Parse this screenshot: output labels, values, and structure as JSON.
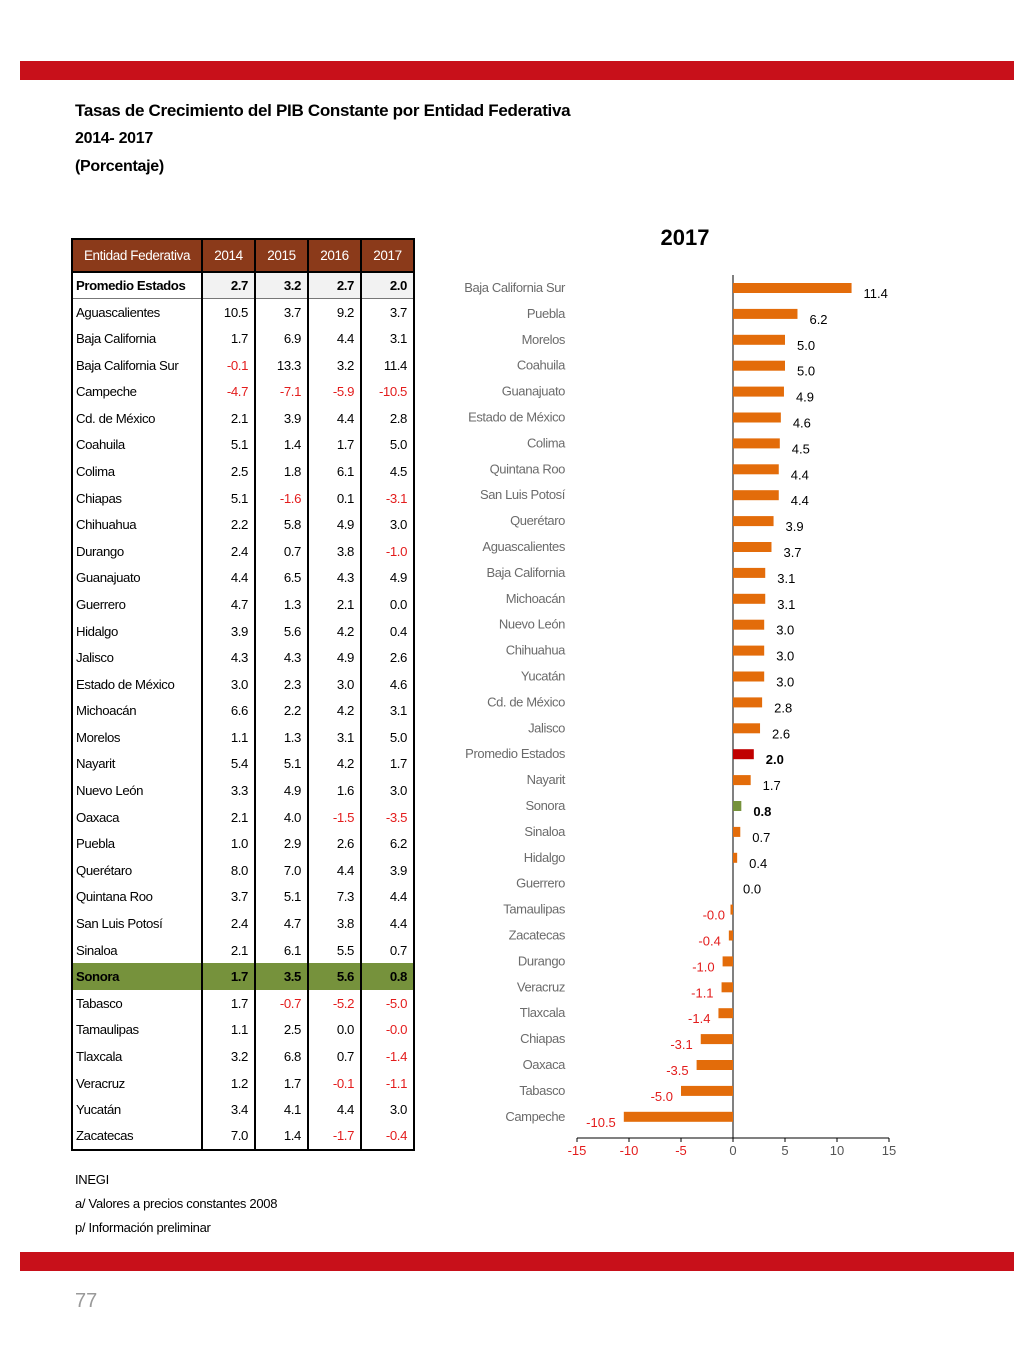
{
  "title": {
    "line1": "Tasas de Crecimiento del PIB Constante por Entidad Federativa",
    "line2": "2014- 2017",
    "line3": "(Porcentaje)"
  },
  "table": {
    "headers": [
      "Entidad Federativa",
      "2014",
      "2015",
      "2016",
      "2017"
    ],
    "rows": [
      {
        "name": "Promedio Estados",
        "values": [
          "2.7",
          "3.2",
          "2.7",
          "2.0"
        ],
        "style": "avg"
      },
      {
        "name": "Aguascalientes",
        "values": [
          "10.5",
          "3.7",
          "9.2",
          "3.7"
        ]
      },
      {
        "name": "Baja California",
        "values": [
          "1.7",
          "6.9",
          "4.4",
          "3.1"
        ]
      },
      {
        "name": "Baja California Sur",
        "values": [
          "-0.1",
          "13.3",
          "3.2",
          "11.4"
        ]
      },
      {
        "name": "Campeche",
        "values": [
          "-4.7",
          "-7.1",
          "-5.9",
          "-10.5"
        ]
      },
      {
        "name": "Cd. de México",
        "values": [
          "2.1",
          "3.9",
          "4.4",
          "2.8"
        ]
      },
      {
        "name": "Coahuila",
        "values": [
          "5.1",
          "1.4",
          "1.7",
          "5.0"
        ]
      },
      {
        "name": "Colima",
        "values": [
          "2.5",
          "1.8",
          "6.1",
          "4.5"
        ]
      },
      {
        "name": "Chiapas",
        "values": [
          "5.1",
          "-1.6",
          "0.1",
          "-3.1"
        ]
      },
      {
        "name": "Chihuahua",
        "values": [
          "2.2",
          "5.8",
          "4.9",
          "3.0"
        ]
      },
      {
        "name": "Durango",
        "values": [
          "2.4",
          "0.7",
          "3.8",
          "-1.0"
        ]
      },
      {
        "name": "Guanajuato",
        "values": [
          "4.4",
          "6.5",
          "4.3",
          "4.9"
        ]
      },
      {
        "name": "Guerrero",
        "values": [
          "4.7",
          "1.3",
          "2.1",
          "0.0"
        ]
      },
      {
        "name": "Hidalgo",
        "values": [
          "3.9",
          "5.6",
          "4.2",
          "0.4"
        ]
      },
      {
        "name": "Jalisco",
        "values": [
          "4.3",
          "4.3",
          "4.9",
          "2.6"
        ]
      },
      {
        "name": "Estado de México",
        "values": [
          "3.0",
          "2.3",
          "3.0",
          "4.6"
        ]
      },
      {
        "name": "Michoacán",
        "values": [
          "6.6",
          "2.2",
          "4.2",
          "3.1"
        ]
      },
      {
        "name": "Morelos",
        "values": [
          "1.1",
          "1.3",
          "3.1",
          "5.0"
        ]
      },
      {
        "name": "Nayarit",
        "values": [
          "5.4",
          "5.1",
          "4.2",
          "1.7"
        ]
      },
      {
        "name": "Nuevo León",
        "values": [
          "3.3",
          "4.9",
          "1.6",
          "3.0"
        ]
      },
      {
        "name": "Oaxaca",
        "values": [
          "2.1",
          "4.0",
          "-1.5",
          "-3.5"
        ]
      },
      {
        "name": "Puebla",
        "values": [
          "1.0",
          "2.9",
          "2.6",
          "6.2"
        ]
      },
      {
        "name": "Querétaro",
        "values": [
          "8.0",
          "7.0",
          "4.4",
          "3.9"
        ]
      },
      {
        "name": "Quintana Roo",
        "values": [
          "3.7",
          "5.1",
          "7.3",
          "4.4"
        ]
      },
      {
        "name": "San Luis Potosí",
        "values": [
          "2.4",
          "4.7",
          "3.8",
          "4.4"
        ]
      },
      {
        "name": "Sinaloa",
        "values": [
          "2.1",
          "6.1",
          "5.5",
          "0.7"
        ]
      },
      {
        "name": "Sonora",
        "values": [
          "1.7",
          "3.5",
          "5.6",
          "0.8"
        ],
        "style": "highlight"
      },
      {
        "name": "Tabasco",
        "values": [
          "1.7",
          "-0.7",
          "-5.2",
          "-5.0"
        ]
      },
      {
        "name": "Tamaulipas",
        "values": [
          "1.1",
          "2.5",
          "0.0",
          "-0.0"
        ]
      },
      {
        "name": "Tlaxcala",
        "values": [
          "3.2",
          "6.8",
          "0.7",
          "-1.4"
        ]
      },
      {
        "name": "Veracruz",
        "values": [
          "1.2",
          "1.7",
          "-0.1",
          "-1.1"
        ]
      },
      {
        "name": "Yucatán",
        "values": [
          "3.4",
          "4.1",
          "4.4",
          "3.0"
        ]
      },
      {
        "name": "Zacatecas",
        "values": [
          "7.0",
          "1.4",
          "-1.7",
          "-0.4"
        ]
      }
    ]
  },
  "notes": {
    "source": "INEGI",
    "note_a": "a/ Valores a precios constantes 2008",
    "note_p": "p/ Información preliminar"
  },
  "page_number": "77",
  "colors": {
    "band": "#c8101a",
    "header": "#8b3a1a",
    "highlight_row": "#76923c",
    "bar_default": "#e36c0a",
    "bar_average": "#c00000",
    "bar_sonora": "#76923c",
    "negative_text": "#e31c1c"
  },
  "chart_data": {
    "type": "bar",
    "orientation": "horizontal",
    "title": "2017",
    "categories": [
      "Baja California Sur",
      "Puebla",
      "Morelos",
      "Coahuila",
      "Guanajuato",
      "Estado de México",
      "Colima",
      "Quintana Roo",
      "San Luis Potosí",
      "Querétaro",
      "Aguascalientes",
      "Baja California",
      "Michoacán",
      "Nuevo León",
      "Chihuahua",
      "Yucatán",
      "Cd. de México",
      "Jalisco",
      "Promedio Estados",
      "Nayarit",
      "Sonora",
      "Sinaloa",
      "Hidalgo",
      "Guerrero",
      "Tamaulipas",
      "Zacatecas",
      "Durango",
      "Veracruz",
      "Tlaxcala",
      "Chiapas",
      "Oaxaca",
      "Tabasco",
      "Campeche"
    ],
    "values": [
      11.4,
      6.2,
      5.0,
      5.0,
      4.9,
      4.6,
      4.5,
      4.4,
      4.4,
      3.9,
      3.7,
      3.1,
      3.1,
      3.0,
      3.0,
      3.0,
      2.8,
      2.6,
      2.0,
      1.7,
      0.8,
      0.7,
      0.4,
      0.0,
      -0.0,
      -0.4,
      -1.0,
      -1.1,
      -1.4,
      -3.1,
      -3.5,
      -5.0,
      -10.5
    ],
    "labels": [
      "11.4",
      "6.2",
      "5.0",
      "5.0",
      "4.9",
      "4.6",
      "4.5",
      "4.4",
      "4.4",
      "3.9",
      "3.7",
      "3.1",
      "3.1",
      "3.0",
      "3.0",
      "3.0",
      "2.8",
      "2.6",
      "2.0",
      "1.7",
      "0.8",
      "0.7",
      "0.4",
      "0.0",
      "-0.0",
      "-0.4",
      "-1.0",
      "-1.1",
      "-1.4",
      "-3.1",
      "-3.5",
      "-5.0",
      "-10.5"
    ],
    "highlight": {
      "Promedio Estados": "average",
      "Sonora": "sonora"
    },
    "xlim": [
      -15,
      15
    ],
    "xticks": [
      -15,
      -10,
      -5,
      0,
      5,
      10,
      15
    ],
    "grid": false,
    "legend": false
  }
}
